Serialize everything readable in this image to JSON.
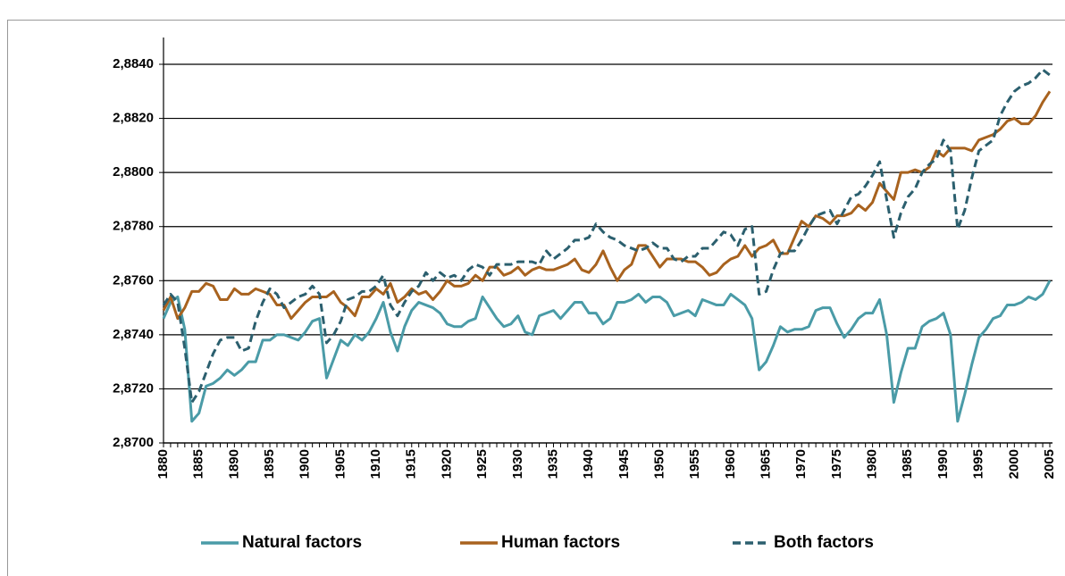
{
  "chart_data": {
    "type": "line",
    "x": [
      1880,
      1881,
      1882,
      1883,
      1884,
      1885,
      1886,
      1887,
      1888,
      1889,
      1890,
      1891,
      1892,
      1893,
      1894,
      1895,
      1896,
      1897,
      1898,
      1899,
      1900,
      1901,
      1902,
      1903,
      1904,
      1905,
      1906,
      1907,
      1908,
      1909,
      1910,
      1911,
      1912,
      1913,
      1914,
      1915,
      1916,
      1917,
      1918,
      1919,
      1920,
      1921,
      1922,
      1923,
      1924,
      1925,
      1926,
      1927,
      1928,
      1929,
      1930,
      1931,
      1932,
      1933,
      1934,
      1935,
      1936,
      1937,
      1938,
      1939,
      1940,
      1941,
      1942,
      1943,
      1944,
      1945,
      1946,
      1947,
      1948,
      1949,
      1950,
      1951,
      1952,
      1953,
      1954,
      1955,
      1956,
      1957,
      1958,
      1959,
      1960,
      1961,
      1962,
      1963,
      1964,
      1965,
      1966,
      1967,
      1968,
      1969,
      1970,
      1971,
      1972,
      1973,
      1974,
      1975,
      1976,
      1977,
      1978,
      1979,
      1980,
      1981,
      1982,
      1983,
      1984,
      1985,
      1986,
      1987,
      1988,
      1989,
      1990,
      1991,
      1992,
      1993,
      1994,
      1995,
      1996,
      1997,
      1998,
      1999,
      2000,
      2001,
      2002,
      2003,
      2004,
      2005
    ],
    "xlim": [
      1880,
      2005
    ],
    "xticks": [
      1880,
      1885,
      1890,
      1895,
      1900,
      1905,
      1910,
      1915,
      1920,
      1925,
      1930,
      1935,
      1940,
      1945,
      1950,
      1955,
      1960,
      1965,
      1970,
      1975,
      1980,
      1985,
      1990,
      1995,
      2000,
      2005
    ],
    "ylim": [
      2.87,
      2.884
    ],
    "yticks": [
      {
        "value": 2.87,
        "label": "2,8700"
      },
      {
        "value": 2.872,
        "label": "2,8720"
      },
      {
        "value": 2.874,
        "label": "2,8740"
      },
      {
        "value": 2.876,
        "label": "2,8760"
      },
      {
        "value": 2.878,
        "label": "2,8780"
      },
      {
        "value": 2.88,
        "label": "2,8800"
      },
      {
        "value": 2.882,
        "label": "2,8820"
      },
      {
        "value": 2.884,
        "label": "2,8840"
      }
    ],
    "grid": true,
    "legend": "bottom",
    "series": [
      {
        "name": "Natural factors",
        "color": "#4a9ba7",
        "dash": false,
        "values": [
          2.8746,
          2.8752,
          2.8754,
          2.8742,
          2.8708,
          2.8711,
          2.8721,
          2.8722,
          2.8724,
          2.8727,
          2.8725,
          2.8727,
          2.873,
          2.873,
          2.8738,
          2.8738,
          2.874,
          2.874,
          2.8739,
          2.8738,
          2.8741,
          2.8745,
          2.8746,
          2.8724,
          2.8731,
          2.8738,
          2.8736,
          2.874,
          2.8738,
          2.8741,
          2.8746,
          2.8752,
          2.8741,
          2.8734,
          2.8743,
          2.8749,
          2.8752,
          2.8751,
          2.875,
          2.8748,
          2.8744,
          2.8743,
          2.8743,
          2.8745,
          2.8746,
          2.8754,
          2.875,
          2.8746,
          2.8743,
          2.8744,
          2.8747,
          2.8741,
          2.874,
          2.8747,
          2.8748,
          2.8749,
          2.8746,
          2.8749,
          2.8752,
          2.8752,
          2.8748,
          2.8748,
          2.8744,
          2.8746,
          2.8752,
          2.8752,
          2.8753,
          2.8755,
          2.8752,
          2.8754,
          2.8754,
          2.8752,
          2.8747,
          2.8748,
          2.8749,
          2.8747,
          2.8753,
          2.8752,
          2.8751,
          2.8751,
          2.8755,
          2.8753,
          2.8751,
          2.8746,
          2.8727,
          2.873,
          2.8736,
          2.8743,
          2.8741,
          2.8742,
          2.8742,
          2.8743,
          2.8749,
          2.875,
          2.875,
          2.8744,
          2.8739,
          2.8742,
          2.8746,
          2.8748,
          2.8748,
          2.8753,
          2.874,
          2.8715,
          2.8726,
          2.8735,
          2.8735,
          2.8743,
          2.8745,
          2.8746,
          2.8748,
          2.874,
          2.8708,
          2.8718,
          2.8729,
          2.8739,
          2.8742,
          2.8746,
          2.8747,
          2.8751,
          2.8751,
          2.8752,
          2.8754,
          2.8753,
          2.8755,
          2.876
        ]
      },
      {
        "name": "Human factors",
        "color": "#a8621e",
        "dash": false,
        "values": [
          2.8749,
          2.8754,
          2.8746,
          2.875,
          2.8756,
          2.8756,
          2.8759,
          2.8758,
          2.8753,
          2.8753,
          2.8757,
          2.8755,
          2.8755,
          2.8757,
          2.8756,
          2.8755,
          2.8751,
          2.8751,
          2.8746,
          2.8749,
          2.8752,
          2.8754,
          2.8754,
          2.8754,
          2.8756,
          2.8752,
          2.875,
          2.8747,
          2.8754,
          2.8754,
          2.8757,
          2.8755,
          2.8759,
          2.8752,
          2.8754,
          2.8757,
          2.8755,
          2.8756,
          2.8753,
          2.8756,
          2.876,
          2.8758,
          2.8758,
          2.8759,
          2.8762,
          2.876,
          2.8765,
          2.8765,
          2.8762,
          2.8763,
          2.8765,
          2.8762,
          2.8764,
          2.8765,
          2.8764,
          2.8764,
          2.8765,
          2.8766,
          2.8768,
          2.8764,
          2.8763,
          2.8766,
          2.8771,
          2.8765,
          2.876,
          2.8764,
          2.8766,
          2.8773,
          2.8773,
          2.8769,
          2.8765,
          2.8768,
          2.8768,
          2.8768,
          2.8767,
          2.8767,
          2.8765,
          2.8762,
          2.8763,
          2.8766,
          2.8768,
          2.8769,
          2.8773,
          2.8769,
          2.8772,
          2.8773,
          2.8775,
          2.877,
          2.877,
          2.8776,
          2.8782,
          2.878,
          2.8784,
          2.8783,
          2.8781,
          2.8784,
          2.8784,
          2.8785,
          2.8788,
          2.8786,
          2.8789,
          2.8796,
          2.8793,
          2.879,
          2.88,
          2.88,
          2.8801,
          2.88,
          2.8802,
          2.8808,
          2.8806,
          2.8809,
          2.8809,
          2.8809,
          2.8808,
          2.8812,
          2.8813,
          2.8814,
          2.8816,
          2.8819,
          2.882,
          2.8818,
          2.8818,
          2.8821,
          2.8826,
          2.883
        ]
      },
      {
        "name": "Both factors",
        "color": "#2b5f6e",
        "dash": true,
        "values": [
          2.8751,
          2.8755,
          2.8752,
          2.8735,
          2.8715,
          2.8719,
          2.8726,
          2.8733,
          2.8738,
          2.8739,
          2.8739,
          2.8734,
          2.8735,
          2.8745,
          2.8752,
          2.8757,
          2.8755,
          2.875,
          2.8752,
          2.8754,
          2.8755,
          2.8758,
          2.8755,
          2.8737,
          2.874,
          2.8745,
          2.8753,
          2.8754,
          2.8756,
          2.8756,
          2.8758,
          2.8762,
          2.8751,
          2.8747,
          2.8752,
          2.8756,
          2.8758,
          2.8763,
          2.876,
          2.8763,
          2.8761,
          2.8762,
          2.876,
          2.8764,
          2.8766,
          2.8765,
          2.8762,
          2.8766,
          2.8766,
          2.8766,
          2.8767,
          2.8767,
          2.8767,
          2.8766,
          2.8771,
          2.8768,
          2.877,
          2.8772,
          2.8775,
          2.8775,
          2.8776,
          2.8781,
          2.8778,
          2.8776,
          2.8775,
          2.8773,
          2.8772,
          2.8771,
          2.8772,
          2.8774,
          2.8772,
          2.8772,
          2.8768,
          2.8767,
          2.8769,
          2.8769,
          2.8772,
          2.8772,
          2.8775,
          2.8778,
          2.8777,
          2.8773,
          2.8779,
          2.878,
          2.8755,
          2.8756,
          2.8764,
          2.877,
          2.8771,
          2.8771,
          2.8775,
          2.878,
          2.8784,
          2.8785,
          2.8786,
          2.8781,
          2.8786,
          2.8791,
          2.8792,
          2.8795,
          2.8799,
          2.8804,
          2.879,
          2.8776,
          2.8785,
          2.8791,
          2.8794,
          2.88,
          2.8803,
          2.8805,
          2.8812,
          2.8808,
          2.8779,
          2.8786,
          2.8798,
          2.8808,
          2.881,
          2.8812,
          2.8821,
          2.8826,
          2.883,
          2.8832,
          2.8833,
          2.8835,
          2.8838,
          2.8836
        ]
      }
    ]
  }
}
